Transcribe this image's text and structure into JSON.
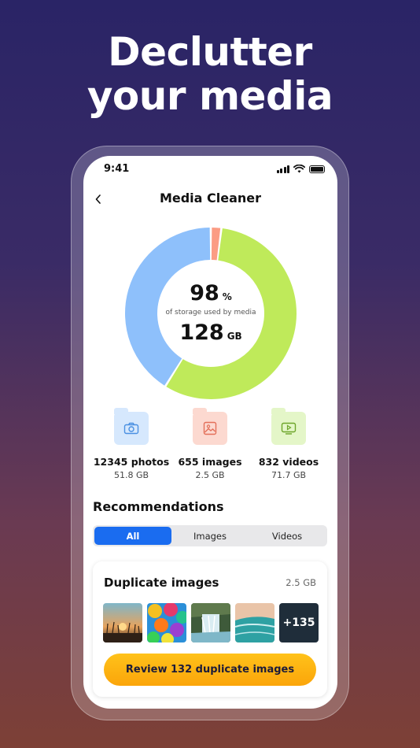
{
  "headline": {
    "line1": "Declutter",
    "line2": "your media"
  },
  "status_bar": {
    "time": "9:41"
  },
  "nav": {
    "title": "Media Cleaner"
  },
  "storage": {
    "percent": "98",
    "percent_unit": "%",
    "caption": "of storage used by media",
    "total": "128",
    "total_unit": "GB"
  },
  "chart_data": {
    "type": "pie",
    "categories": [
      "photos",
      "images",
      "videos"
    ],
    "values": [
      51.8,
      2.5,
      71.7
    ],
    "colors": [
      "#8ec0fb",
      "#fb9c84",
      "#bfea5a"
    ],
    "title": ""
  },
  "stats": [
    {
      "count": "12345 photos",
      "size": "51.8 GB",
      "icon": "camera-icon",
      "bg": "#d6e8fd",
      "fg": "#4a90e2"
    },
    {
      "count": "655 images",
      "size": "2.5 GB",
      "icon": "image-icon",
      "bg": "#fcd9d0",
      "fg": "#e3705a"
    },
    {
      "count": "832 videos",
      "size": "71.7 GB",
      "icon": "play-icon",
      "bg": "#e4f6c8",
      "fg": "#6da52a"
    }
  ],
  "recommendations": {
    "title": "Recommendations",
    "tabs": [
      {
        "label": "All",
        "active": true
      },
      {
        "label": "Images",
        "active": false
      },
      {
        "label": "Videos",
        "active": false
      }
    ]
  },
  "duplicate_card": {
    "title": "Duplicate images",
    "size": "2.5 GB",
    "more_label": "+135",
    "button_label": "Review 132 duplicate images"
  }
}
